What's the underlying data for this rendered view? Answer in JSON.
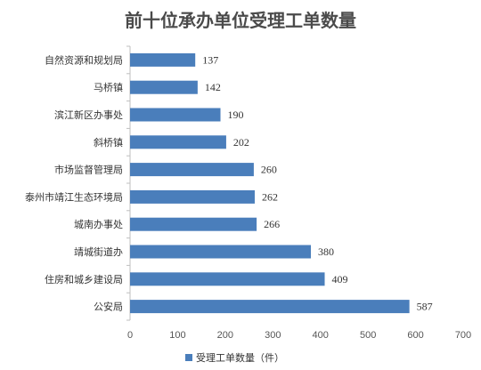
{
  "chart_data": {
    "type": "bar",
    "orientation": "horizontal",
    "title": "前十位承办单位受理工单数量",
    "categories": [
      "自然资源和规划局",
      "马桥镇",
      "滨江新区办事处",
      "斜桥镇",
      "市场监督管理局",
      "泰州市靖江生态环境局",
      "城南办事处",
      "靖城街道办",
      "住房和城乡建设局",
      "公安局"
    ],
    "series": [
      {
        "name": "受理工单数量（件）",
        "values": [
          137,
          142,
          190,
          202,
          260,
          262,
          266,
          380,
          409,
          587
        ]
      }
    ],
    "xlim": [
      0,
      700
    ],
    "xticks": [
      0,
      100,
      200,
      300,
      400,
      500,
      600,
      700
    ],
    "grid": false,
    "legend": "bottom",
    "color": "#4a7ebb",
    "xlabel": "",
    "ylabel": ""
  }
}
